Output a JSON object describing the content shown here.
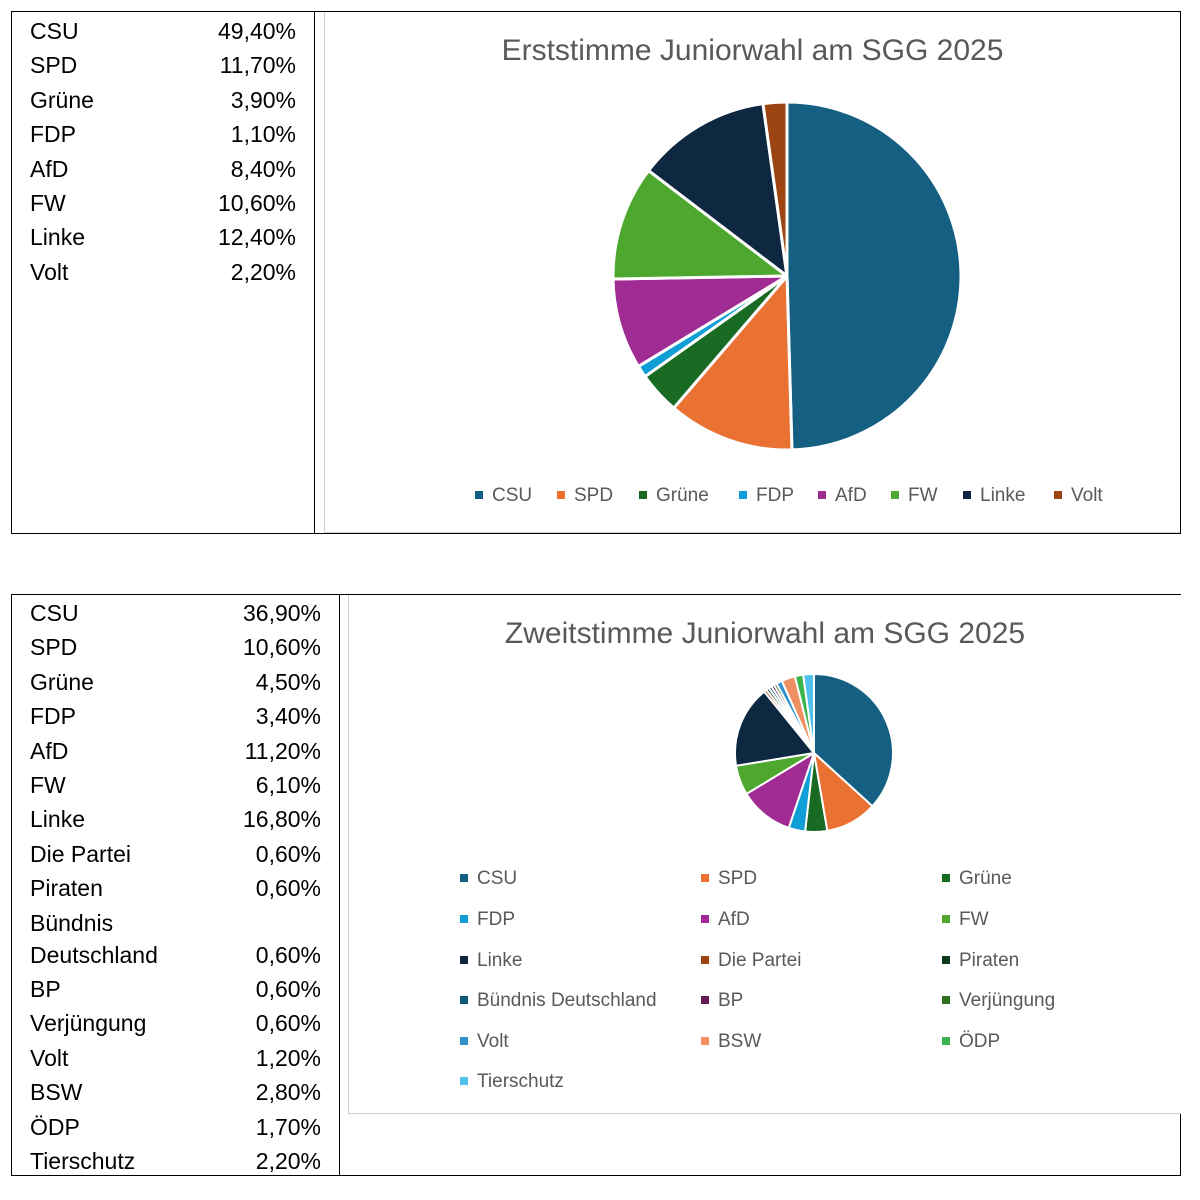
{
  "chart_data": [
    {
      "type": "pie",
      "title": "Erststimme Juniorwahl am SGG 2025",
      "categories": [
        "CSU",
        "SPD",
        "Grüne",
        "FDP",
        "AfD",
        "FW",
        "Linke",
        "Volt"
      ],
      "values": [
        49.4,
        11.7,
        3.9,
        1.1,
        8.4,
        10.6,
        12.4,
        2.2
      ],
      "labels": [
        "49,40%",
        "11,70%",
        "3,90%",
        "1,10%",
        "8,40%",
        "10,60%",
        "12,40%",
        "2,20%"
      ],
      "colors": [
        "#156082",
        "#e97132",
        "#196b24",
        "#0f9ed5",
        "#a02b93",
        "#4ea72e",
        "#0e2841",
        "#9c4412"
      ],
      "legend_position": "bottom"
    },
    {
      "type": "pie",
      "title": "Zweitstimme Juniorwahl am SGG 2025",
      "categories": [
        "CSU",
        "SPD",
        "Grüne",
        "FDP",
        "AfD",
        "FW",
        "Linke",
        "Die Partei",
        "Piraten",
        "Bündnis Deutschland",
        "BP",
        "Verjüngung",
        "Volt",
        "BSW",
        "ÖDP",
        "Tierschutz"
      ],
      "table_names": [
        "CSU",
        "SPD",
        "Grüne",
        "FDP",
        "AfD",
        "FW",
        "Linke",
        "Die Partei",
        "Piraten",
        "Bündnis\nDeutschland",
        "BP",
        "Verjüngung",
        "Volt",
        "BSW",
        "ÖDP",
        "Tierschutz"
      ],
      "values": [
        36.9,
        10.6,
        4.5,
        3.4,
        11.2,
        6.1,
        16.8,
        0.6,
        0.6,
        0.6,
        0.6,
        0.6,
        1.2,
        2.8,
        1.7,
        2.2
      ],
      "labels": [
        "36,90%",
        "10,60%",
        "4,50%",
        "3,40%",
        "11,20%",
        "6,10%",
        "16,80%",
        "0,60%",
        "0,60%",
        "0,60%",
        "0,60%",
        "0,60%",
        "1,20%",
        "2,80%",
        "1,70%",
        "2,20%"
      ],
      "colors": [
        "#156082",
        "#e97132",
        "#196b24",
        "#0f9ed5",
        "#a02b93",
        "#4ea72e",
        "#0e2841",
        "#9c4412",
        "#0d3a16",
        "#0e5a7a",
        "#601a58",
        "#2f6e1c",
        "#3292c9",
        "#ee9061",
        "#3cb44b",
        "#4fc1eb"
      ],
      "legend_position": "bottom"
    }
  ]
}
